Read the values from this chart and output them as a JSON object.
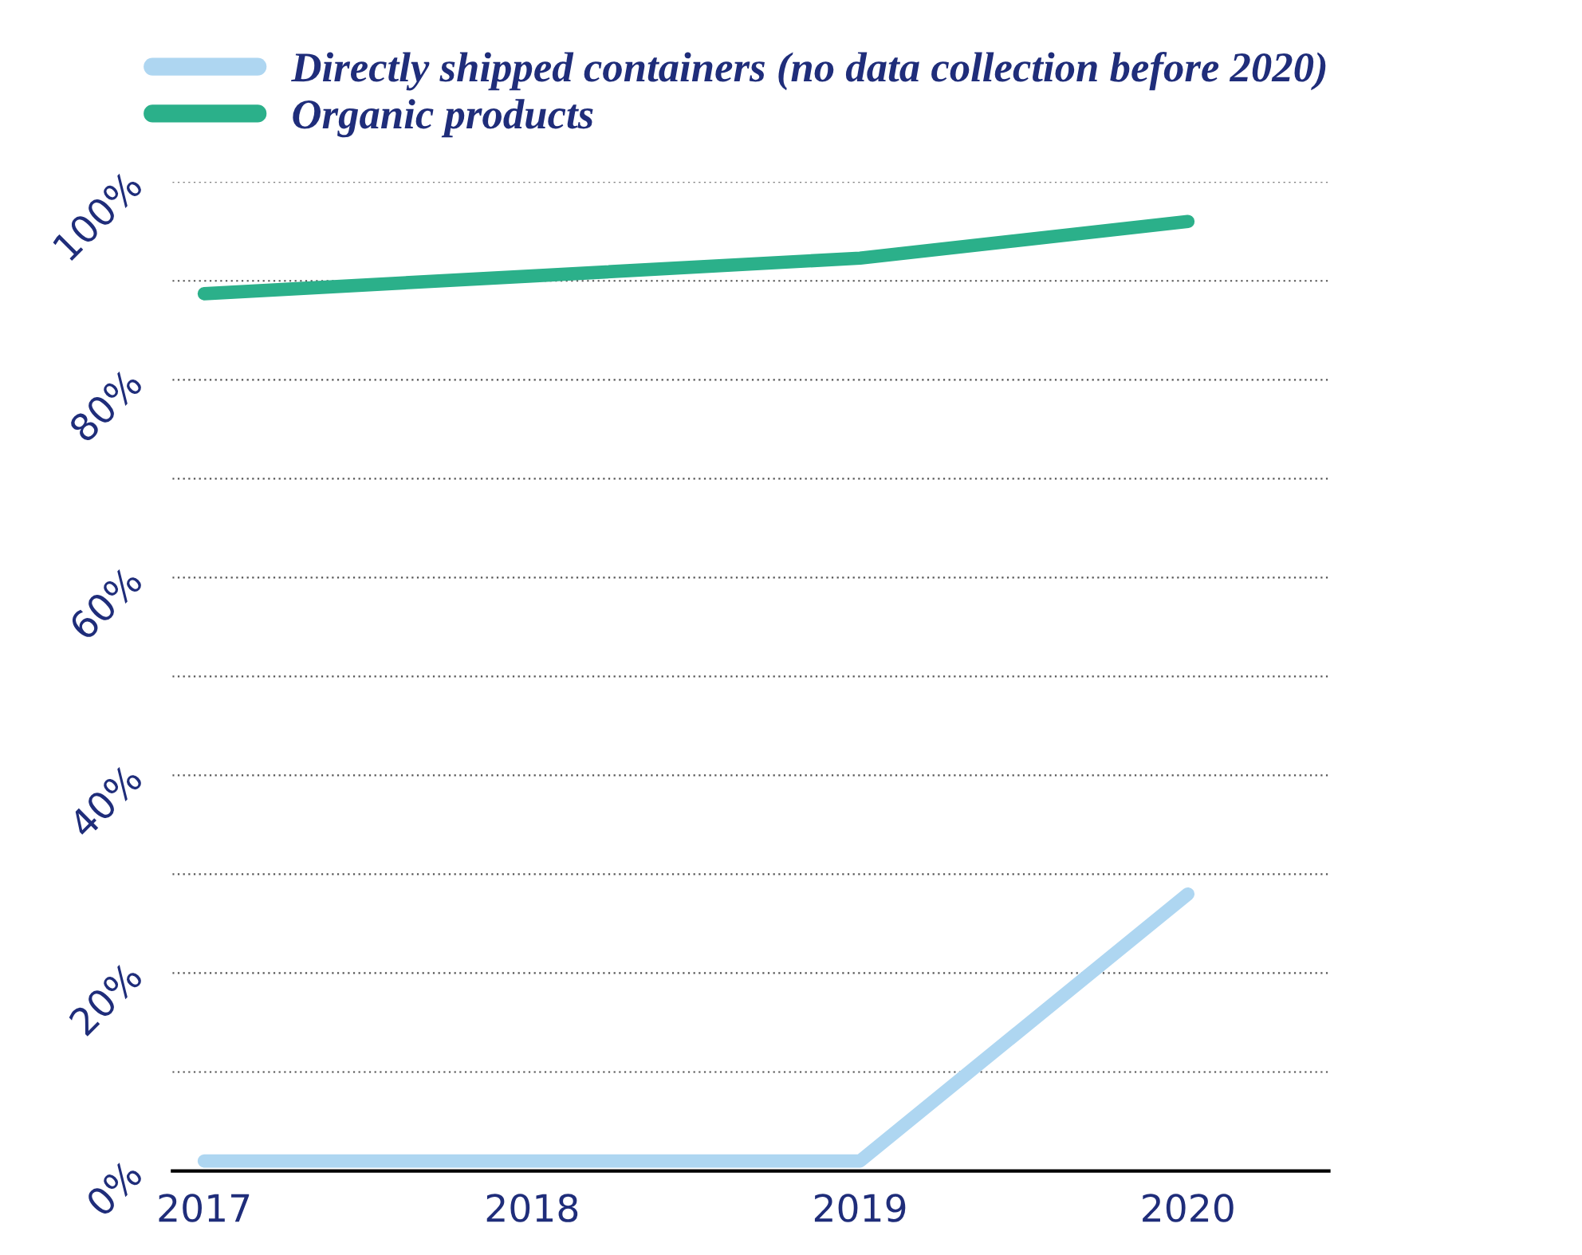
{
  "chart_data": {
    "type": "line",
    "categories": [
      "2017",
      "2018",
      "2019",
      "2020"
    ],
    "series": [
      {
        "name": "Directly shipped containers (no data collection before 2020)",
        "color": "#aed6f1",
        "values": [
          1,
          1,
          1,
          28
        ]
      },
      {
        "name": "Organic products",
        "color": "#2bb08a",
        "values": [
          88.7,
          90.5,
          92.3,
          96
        ]
      }
    ],
    "ylim": [
      0,
      100
    ],
    "yticks": [
      {
        "value": 0,
        "label": "0%"
      },
      {
        "value": 10,
        "label": null
      },
      {
        "value": 20,
        "label": "20%"
      },
      {
        "value": 30,
        "label": null
      },
      {
        "value": 40,
        "label": "40%"
      },
      {
        "value": 50,
        "label": null
      },
      {
        "value": 60,
        "label": "60%"
      },
      {
        "value": 70,
        "label": null
      },
      {
        "value": 80,
        "label": "80%"
      },
      {
        "value": 90,
        "label": null
      },
      {
        "value": 100,
        "label": "100%"
      }
    ],
    "grid": "y",
    "legend": "top left",
    "marker": "none",
    "line_style": "solid"
  }
}
